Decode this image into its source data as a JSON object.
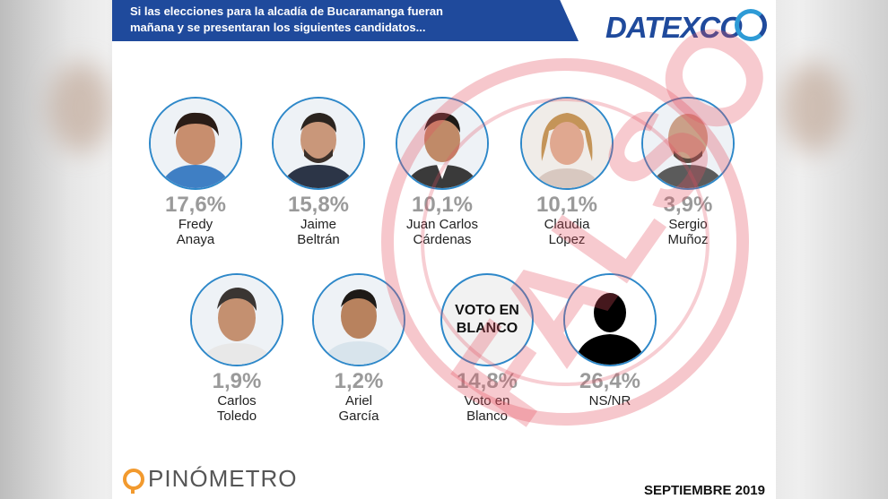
{
  "header": {
    "question_line1": "Si las elecciones para la alcadía de Bucaramanga fueran",
    "question_line2": "mañana y se presentaran los siguientes candidatos..."
  },
  "brand": {
    "name": "DATEXCO",
    "color": "#1f4a9c",
    "accent": "#2e9bd6"
  },
  "stamp": {
    "word": "FALSO",
    "color": "#e45060"
  },
  "candidates_row1": [
    {
      "pct": "17,6%",
      "first": "Fredy",
      "last": "Anaya"
    },
    {
      "pct": "15,8%",
      "first": "Jaime",
      "last": "Beltrán"
    },
    {
      "pct": "10,1%",
      "first": "Juan Carlos",
      "last": "Cárdenas"
    },
    {
      "pct": "10,1%",
      "first": "Claudia",
      "last": "López"
    },
    {
      "pct": "3,9%",
      "first": "Sergio",
      "last": "Muñoz"
    }
  ],
  "candidates_row2": [
    {
      "pct": "1,9%",
      "first": "Carlos",
      "last": "Toledo"
    },
    {
      "pct": "1,2%",
      "first": "Ariel",
      "last": "García"
    },
    {
      "pct": "14,8%",
      "first": "Voto en",
      "last": "Blanco",
      "circle_line1": "VOTO EN",
      "circle_line2": "BLANCO"
    },
    {
      "pct": "26,4%",
      "first": "NS/NR",
      "last": ""
    }
  ],
  "footer": {
    "source": "PINÓMETRO",
    "date": "SEPTIEMBRE 2019"
  }
}
